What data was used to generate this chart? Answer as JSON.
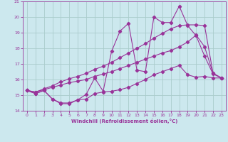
{
  "xlabel": "Windchill (Refroidissement éolien,°C)",
  "bg_color": "#cce8ee",
  "line_color": "#993399",
  "grid_color": "#aacccc",
  "xlim": [
    -0.5,
    23.5
  ],
  "ylim": [
    14,
    21
  ],
  "xticks": [
    0,
    1,
    2,
    3,
    4,
    5,
    6,
    7,
    8,
    9,
    10,
    11,
    12,
    13,
    14,
    15,
    16,
    17,
    18,
    19,
    20,
    21,
    22,
    23
  ],
  "yticks": [
    14,
    15,
    16,
    17,
    18,
    19,
    20,
    21
  ],
  "series": [
    {
      "x": [
        0,
        1,
        2,
        3,
        4,
        5,
        6,
        7,
        8,
        9,
        10,
        11,
        12,
        13,
        14,
        15,
        16,
        17,
        18,
        19,
        20,
        21,
        22,
        23
      ],
      "y": [
        15.3,
        15.1,
        15.3,
        14.75,
        14.5,
        14.5,
        14.7,
        14.75,
        15.1,
        15.2,
        15.25,
        15.35,
        15.5,
        15.75,
        16.0,
        16.3,
        16.5,
        16.7,
        16.9,
        16.3,
        16.15,
        16.2,
        16.1,
        16.1
      ]
    },
    {
      "x": [
        0,
        1,
        2,
        3,
        4,
        5,
        6,
        7,
        8,
        9,
        10,
        11,
        12,
        13,
        14,
        15,
        16,
        17,
        18,
        19,
        20,
        21,
        22,
        23
      ],
      "y": [
        15.3,
        15.1,
        15.3,
        14.75,
        14.45,
        14.45,
        14.7,
        15.05,
        16.1,
        15.25,
        17.8,
        19.1,
        19.6,
        16.6,
        16.5,
        20.0,
        19.65,
        19.65,
        20.7,
        19.45,
        18.8,
        17.5,
        16.35,
        16.1
      ]
    },
    {
      "x": [
        0,
        1,
        2,
        3,
        4,
        5,
        6,
        7,
        8,
        9,
        10,
        11,
        12,
        13,
        14,
        15,
        16,
        17,
        18,
        19,
        20,
        21,
        22,
        23
      ],
      "y": [
        15.3,
        15.2,
        15.35,
        15.5,
        15.65,
        15.8,
        15.9,
        16.0,
        16.2,
        16.35,
        16.5,
        16.7,
        16.9,
        17.1,
        17.3,
        17.5,
        17.7,
        17.85,
        18.1,
        18.4,
        18.85,
        18.1,
        16.4,
        16.1
      ]
    },
    {
      "x": [
        0,
        1,
        2,
        3,
        4,
        5,
        6,
        7,
        8,
        9,
        10,
        11,
        12,
        13,
        14,
        15,
        16,
        17,
        18,
        19,
        20,
        21,
        22,
        23
      ],
      "y": [
        15.3,
        15.2,
        15.4,
        15.6,
        15.85,
        16.05,
        16.2,
        16.4,
        16.65,
        16.85,
        17.1,
        17.4,
        17.7,
        18.0,
        18.3,
        18.65,
        18.95,
        19.25,
        19.45,
        19.5,
        19.5,
        19.45,
        16.4,
        16.1
      ]
    }
  ]
}
